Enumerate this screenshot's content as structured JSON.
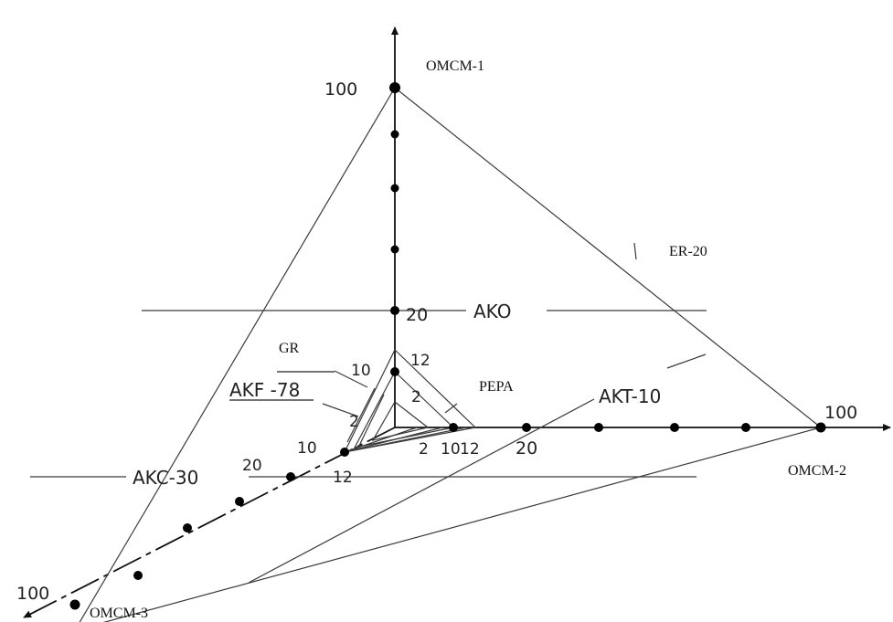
{
  "axes": {
    "top": "ОМСМ-1",
    "right": "ОМСМ-2",
    "bottom_left": "ОМСМ-3"
  },
  "ticks": {
    "max_top": "100",
    "max_right": "100",
    "max_left": "100",
    "v20": "20",
    "h20": "20",
    "d20": "20"
  },
  "inner_ticks": {
    "v12": "12",
    "v10": "10",
    "v2": "2",
    "h2": "2",
    "h10": "10",
    "h12": "12",
    "d10": "10",
    "d12": "12",
    "d2": "2"
  },
  "labels": {
    "ako": "AKO",
    "akt": "AKT-10",
    "akf": "AKF -78",
    "akc": "AKC-30",
    "er": "ER-20",
    "gr": "GR",
    "pepa": "PEPA"
  },
  "colors": {
    "axis": "#111111",
    "line": "#3a3a3a"
  }
}
